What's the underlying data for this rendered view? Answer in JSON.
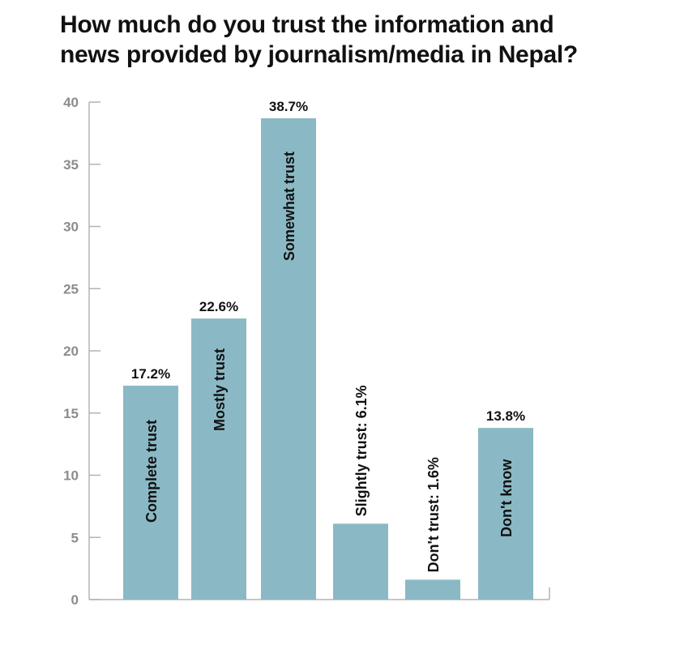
{
  "chart_data": {
    "type": "bar",
    "title_lines": [
      "How much do you trust the information and",
      "news provided by journalism/media in Nepal?"
    ],
    "categories": [
      "Complete trust",
      "Mostly trust",
      "Somewhat trust",
      "Slightly trust: 6.1%",
      "Don't trust: 1.6%",
      "Don't know"
    ],
    "values": [
      17.2,
      22.6,
      38.7,
      6.1,
      1.6,
      13.8
    ],
    "data_labels": [
      "17.2%",
      "22.6%",
      "38.7%",
      "",
      "",
      "13.8%"
    ],
    "ylim": [
      0,
      40
    ],
    "yticks": [
      "0",
      "5",
      "10",
      "15",
      "20",
      "25",
      "30",
      "35",
      "40"
    ],
    "grid": false,
    "legend": "none",
    "colors": {
      "bar": "#8ab9c5",
      "axis": "#b3b3b3"
    }
  }
}
